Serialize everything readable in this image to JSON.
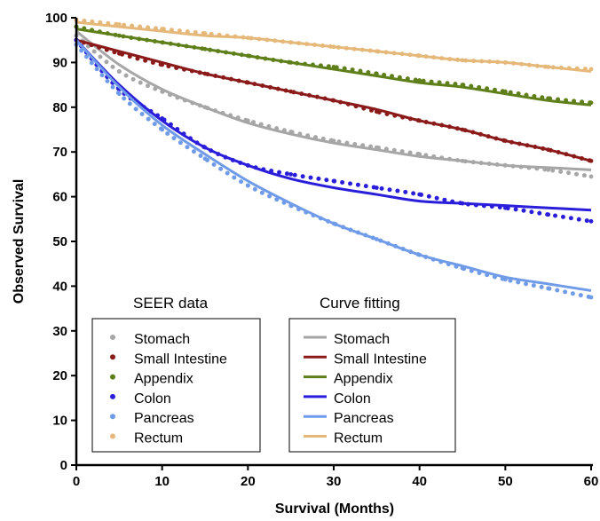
{
  "chart_data": {
    "type": "line",
    "xlabel": "Survival (Months)",
    "ylabel": "Observed Survival",
    "xlim": [
      0,
      60
    ],
    "ylim": [
      0,
      100
    ],
    "x_ticks": [
      "0",
      "10",
      "20",
      "30",
      "40",
      "50",
      "60"
    ],
    "y_ticks": [
      "0",
      "10",
      "20",
      "30",
      "40",
      "50",
      "60",
      "70",
      "80",
      "90",
      "100"
    ],
    "grid": false,
    "legends": [
      {
        "title": "SEER data",
        "style": "dotted",
        "placement": "bottom-left",
        "entries": [
          "Stomach",
          "Small Intestine",
          "Appendix",
          "Colon",
          "Pancreas",
          "Rectum"
        ]
      },
      {
        "title": "Curve fitting",
        "style": "solid",
        "placement": "bottom-center",
        "entries": [
          "Stomach",
          "Small Intestine",
          "Appendix",
          "Colon",
          "Pancreas",
          "Rectum"
        ]
      }
    ],
    "x": [
      0,
      5,
      10,
      15,
      20,
      25,
      30,
      35,
      40,
      45,
      50,
      55,
      60
    ],
    "series": [
      {
        "name": "Stomach",
        "color": "#a6a6a6",
        "seer_values": [
          96,
          88,
          83.5,
          80,
          77,
          74.5,
          72.5,
          71,
          69.5,
          68,
          67,
          66,
          64.5
        ],
        "fit_values": [
          97,
          89.5,
          84,
          80,
          76.5,
          74,
          72,
          70.5,
          69,
          68,
          67,
          66.5,
          66
        ]
      },
      {
        "name": "Small Intestine",
        "color": "#8b1a1a",
        "seer_values": [
          95,
          92,
          89.5,
          87.5,
          85.5,
          83.5,
          81.5,
          79,
          77,
          75,
          72.5,
          70.5,
          68
        ],
        "fit_values": [
          95,
          92.5,
          90,
          87.5,
          85.5,
          83.5,
          81.5,
          79.5,
          77,
          75,
          72.5,
          70.5,
          68
        ]
      },
      {
        "name": "Appendix",
        "color": "#5e7f1a",
        "seer_values": [
          98,
          96,
          94.5,
          93,
          91.5,
          90,
          89,
          87.5,
          86,
          85,
          83.5,
          82,
          81
        ],
        "fit_values": [
          97.5,
          96,
          94.5,
          93,
          91.5,
          90,
          88.5,
          87,
          85.5,
          84.5,
          83,
          81.5,
          80.5
        ]
      },
      {
        "name": "Colon",
        "color": "#2a1edb",
        "seer_values": [
          95,
          84,
          77.5,
          71,
          67,
          65,
          63.5,
          62,
          60.5,
          58.5,
          57.5,
          56,
          54.5
        ],
        "fit_values": [
          95,
          85,
          77,
          71,
          67,
          64,
          62,
          60.5,
          59,
          58.5,
          58,
          57.5,
          57
        ]
      },
      {
        "name": "Pancreas",
        "color": "#6f9be8",
        "seer_values": [
          94,
          83,
          75,
          68.5,
          62.5,
          58,
          54,
          50.5,
          47,
          44,
          41.5,
          39.5,
          37.5
        ],
        "fit_values": [
          95,
          84.5,
          76,
          69.5,
          63.5,
          58.5,
          54,
          50.5,
          47,
          44.5,
          42,
          40.5,
          39
        ]
      },
      {
        "name": "Rectum",
        "color": "#e5b87a",
        "seer_values": [
          99.5,
          98.5,
          97.5,
          96.5,
          95.5,
          94.5,
          93.5,
          92.5,
          91.5,
          90.5,
          90,
          89,
          88.5
        ],
        "fit_values": [
          99,
          98,
          97,
          96,
          95.5,
          94.5,
          93.5,
          92.5,
          91.5,
          90.5,
          90,
          89,
          88
        ]
      }
    ]
  }
}
